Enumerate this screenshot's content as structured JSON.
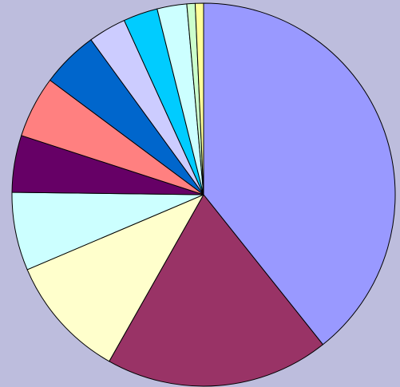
{
  "chart_data": {
    "type": "pie",
    "values": [
      39.3,
      18.9,
      10.4,
      6.6,
      4.8,
      5.2,
      4.8,
      3.2,
      2.9,
      2.5,
      0.7,
      0.7
    ],
    "colors": [
      "#9999ff",
      "#993366",
      "#ffffcc",
      "#ccffff",
      "#660066",
      "#ff8080",
      "#0066cc",
      "#ccccff",
      "#00ccff",
      "#ccffff",
      "#ccffcc",
      "#ffff99"
    ]
  }
}
